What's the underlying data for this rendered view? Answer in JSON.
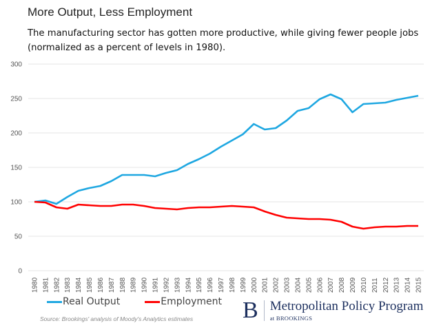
{
  "chart_data": {
    "type": "line",
    "title": "More Output, Less Employment",
    "subtitle": "The manufacturing sector has gotten more productive, while giving fewer people jobs (normalized as a percent of levels in 1980).",
    "xlabel": "",
    "ylabel": "",
    "ylim": [
      0,
      300
    ],
    "yticks": [
      "0",
      "50",
      "100",
      "150",
      "200",
      "250",
      "300"
    ],
    "grid": true,
    "legend_position": "bottom-left",
    "x": [
      "1980",
      "1981",
      "1982",
      "1983",
      "1984",
      "1985",
      "1986",
      "1987",
      "1988",
      "1989",
      "1990",
      "1991",
      "1992",
      "1993",
      "1994",
      "1995",
      "1996",
      "1997",
      "1998",
      "1999",
      "2000",
      "2001",
      "2002",
      "2003",
      "2004",
      "2005",
      "2006",
      "2007",
      "2008",
      "2009",
      "2010",
      "2011",
      "2012",
      "2013",
      "2014",
      "2015"
    ],
    "series": [
      {
        "name": "Real Output",
        "color": "#1ea7e1",
        "values": [
          100,
          102,
          97,
          107,
          116,
          120,
          123,
          130,
          139,
          139,
          139,
          137,
          142,
          146,
          155,
          162,
          170,
          180,
          189,
          198,
          213,
          205,
          207,
          218,
          232,
          236,
          249,
          256,
          249,
          230,
          242,
          243,
          244,
          248,
          251,
          254
        ]
      },
      {
        "name": "Employment",
        "color": "#ff0000",
        "values": [
          100,
          99,
          92,
          90,
          96,
          95,
          94,
          94,
          96,
          96,
          94,
          91,
          90,
          89,
          91,
          92,
          92,
          93,
          94,
          93,
          92,
          86,
          81,
          77,
          76,
          75,
          75,
          74,
          71,
          64,
          61,
          63,
          64,
          64,
          65,
          65
        ]
      }
    ],
    "source": "Source: Brookings' analysis of Moody's Analytics estimates"
  },
  "logo": {
    "mark": "B",
    "name": "Metropolitan Policy Program",
    "sub": "at BROOKINGS",
    "color": "#1c2f5e"
  }
}
